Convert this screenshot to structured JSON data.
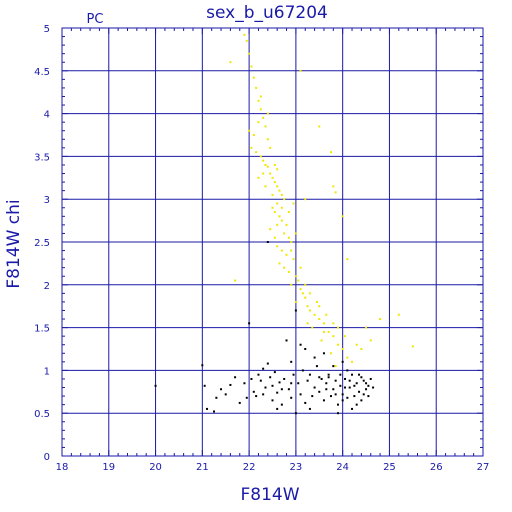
{
  "chart_data": {
    "type": "scatter",
    "title": "sex_b_u67204",
    "corner_label": "PC",
    "xlabel": "F814W",
    "ylabel": "F814W  chi",
    "xlim": [
      18,
      27
    ],
    "ylim": [
      0,
      5
    ],
    "x_ticks": [
      "18",
      "19",
      "20",
      "21",
      "22",
      "23",
      "24",
      "25",
      "26",
      "27"
    ],
    "y_ticks": [
      "0",
      "0.5",
      "1",
      "1.5",
      "2",
      "2.5",
      "3",
      "3.5",
      "4",
      "4.5",
      "5"
    ],
    "grid": true,
    "colors": {
      "axis": "#1a1aa8",
      "grid": "#1a1aa8",
      "text": "#1a1aa8",
      "series_yellow": "#f2e600",
      "series_black": "#000000"
    },
    "series": [
      {
        "color": "#f2e600",
        "points": [
          [
            21.9,
            4.92
          ],
          [
            21.95,
            4.85
          ],
          [
            22.0,
            4.7
          ],
          [
            22.05,
            4.55
          ],
          [
            22.1,
            4.42
          ],
          [
            22.15,
            4.3
          ],
          [
            22.2,
            4.15
          ],
          [
            22.25,
            4.05
          ],
          [
            22.3,
            3.95
          ],
          [
            22.2,
            3.9
          ],
          [
            22.1,
            3.75
          ],
          [
            22.05,
            3.6
          ],
          [
            22.15,
            3.55
          ],
          [
            22.25,
            3.5
          ],
          [
            22.3,
            3.45
          ],
          [
            22.35,
            3.4
          ],
          [
            22.4,
            3.38
          ],
          [
            22.45,
            3.3
          ],
          [
            22.5,
            3.25
          ],
          [
            22.55,
            3.2
          ],
          [
            22.6,
            3.15
          ],
          [
            22.65,
            3.1
          ],
          [
            22.7,
            3.05
          ],
          [
            22.75,
            3.0
          ],
          [
            22.6,
            2.95
          ],
          [
            22.5,
            2.9
          ],
          [
            22.55,
            2.85
          ],
          [
            22.65,
            2.8
          ],
          [
            22.7,
            2.75
          ],
          [
            22.8,
            2.7
          ],
          [
            22.75,
            2.6
          ],
          [
            22.85,
            2.55
          ],
          [
            22.9,
            2.5
          ],
          [
            22.6,
            2.45
          ],
          [
            22.7,
            2.4
          ],
          [
            22.8,
            2.35
          ],
          [
            22.95,
            2.3
          ],
          [
            22.65,
            2.25
          ],
          [
            22.75,
            2.2
          ],
          [
            22.85,
            2.15
          ],
          [
            23.0,
            2.1
          ],
          [
            23.05,
            2.05
          ],
          [
            22.9,
            2.0
          ],
          [
            23.1,
            1.95
          ],
          [
            23.15,
            1.9
          ],
          [
            23.2,
            1.85
          ],
          [
            23.0,
            1.8
          ],
          [
            23.25,
            1.75
          ],
          [
            23.3,
            1.7
          ],
          [
            23.4,
            1.65
          ],
          [
            23.5,
            1.6
          ],
          [
            23.6,
            1.55
          ],
          [
            23.35,
            1.5
          ],
          [
            23.7,
            1.45
          ],
          [
            23.8,
            1.4
          ],
          [
            23.55,
            1.35
          ],
          [
            23.9,
            1.3
          ],
          [
            24.0,
            1.25
          ],
          [
            23.75,
            1.2
          ],
          [
            24.1,
            1.15
          ],
          [
            24.2,
            1.1
          ],
          [
            23.85,
            1.05
          ],
          [
            22.4,
            3.7
          ],
          [
            22.45,
            3.6
          ],
          [
            22.3,
            3.3
          ],
          [
            22.55,
            3.4
          ],
          [
            22.6,
            3.35
          ],
          [
            22.5,
            3.05
          ],
          [
            22.35,
            3.15
          ],
          [
            22.7,
            2.9
          ],
          [
            22.45,
            2.65
          ],
          [
            22.85,
            2.85
          ],
          [
            22.55,
            2.55
          ],
          [
            23.0,
            2.6
          ],
          [
            22.9,
            2.4
          ],
          [
            23.1,
            2.2
          ],
          [
            23.2,
            2.0
          ],
          [
            23.3,
            1.9
          ],
          [
            23.45,
            1.8
          ],
          [
            23.5,
            1.75
          ],
          [
            23.65,
            1.65
          ],
          [
            23.8,
            1.55
          ],
          [
            23.9,
            1.5
          ],
          [
            24.05,
            1.4
          ],
          [
            24.3,
            1.3
          ],
          [
            24.4,
            1.25
          ],
          [
            22.25,
            4.2
          ],
          [
            22.4,
            4.0
          ],
          [
            22.0,
            3.8
          ],
          [
            22.35,
            3.85
          ],
          [
            23.5,
            3.85
          ],
          [
            23.75,
            3.55
          ],
          [
            23.8,
            3.15
          ],
          [
            23.85,
            3.08
          ],
          [
            23.1,
            4.5
          ],
          [
            24.1,
            2.3
          ],
          [
            24.0,
            2.8
          ],
          [
            24.8,
            1.6
          ],
          [
            25.2,
            1.65
          ],
          [
            25.5,
            1.28
          ],
          [
            21.7,
            2.05
          ],
          [
            21.6,
            4.6
          ],
          [
            23.2,
            3.0
          ],
          [
            24.5,
            1.5
          ],
          [
            24.6,
            1.35
          ],
          [
            22.95,
            2.95
          ],
          [
            22.2,
            3.25
          ],
          [
            22.6,
            2.7
          ],
          [
            23.25,
            1.55
          ],
          [
            23.6,
            1.45
          ]
        ]
      },
      {
        "color": "#000000",
        "points": [
          [
            20.0,
            0.82
          ],
          [
            21.0,
            1.06
          ],
          [
            21.05,
            0.82
          ],
          [
            21.1,
            0.55
          ],
          [
            21.25,
            0.52
          ],
          [
            21.4,
            0.78
          ],
          [
            21.5,
            0.72
          ],
          [
            21.6,
            0.83
          ],
          [
            21.8,
            0.62
          ],
          [
            21.9,
            0.85
          ],
          [
            21.95,
            0.68
          ],
          [
            22.0,
            1.55
          ],
          [
            22.05,
            0.9
          ],
          [
            22.1,
            0.75
          ],
          [
            22.15,
            0.7
          ],
          [
            22.2,
            0.95
          ],
          [
            22.25,
            0.88
          ],
          [
            22.3,
            0.72
          ],
          [
            22.35,
            0.8
          ],
          [
            22.4,
            2.5
          ],
          [
            22.4,
            1.08
          ],
          [
            22.45,
            0.92
          ],
          [
            22.5,
            0.65
          ],
          [
            22.55,
            0.98
          ],
          [
            22.6,
            0.74
          ],
          [
            22.65,
            0.86
          ],
          [
            22.7,
            0.6
          ],
          [
            22.75,
            0.9
          ],
          [
            22.8,
            1.35
          ],
          [
            22.85,
            0.78
          ],
          [
            22.9,
            0.68
          ],
          [
            22.95,
            0.95
          ],
          [
            23.0,
            1.7
          ],
          [
            23.0,
            0.5
          ],
          [
            23.05,
            0.85
          ],
          [
            23.1,
            0.72
          ],
          [
            23.15,
            1.0
          ],
          [
            23.2,
            0.62
          ],
          [
            23.25,
            0.88
          ],
          [
            23.3,
            0.95
          ],
          [
            23.35,
            0.7
          ],
          [
            23.4,
            0.8
          ],
          [
            23.45,
            1.05
          ],
          [
            23.5,
            0.75
          ],
          [
            23.55,
            0.9
          ],
          [
            23.6,
            0.65
          ],
          [
            23.65,
            0.85
          ],
          [
            23.7,
            0.95
          ],
          [
            23.75,
            0.7
          ],
          [
            23.8,
            0.78
          ],
          [
            23.85,
            0.88
          ],
          [
            23.9,
            0.6
          ],
          [
            23.95,
            0.82
          ],
          [
            24.0,
            0.72
          ],
          [
            24.05,
            0.9
          ],
          [
            24.1,
            0.68
          ],
          [
            24.15,
            0.8
          ],
          [
            24.2,
            0.95
          ],
          [
            24.25,
            0.7
          ],
          [
            24.3,
            0.85
          ],
          [
            24.35,
            0.75
          ],
          [
            24.4,
            0.65
          ],
          [
            24.45,
            0.88
          ],
          [
            24.5,
            0.78
          ],
          [
            24.55,
            0.7
          ],
          [
            24.6,
            0.9
          ],
          [
            24.65,
            0.8
          ],
          [
            23.2,
            1.25
          ],
          [
            23.4,
            1.15
          ],
          [
            23.6,
            1.2
          ],
          [
            23.8,
            1.05
          ],
          [
            24.0,
            1.1
          ],
          [
            24.2,
            0.55
          ],
          [
            24.3,
            0.6
          ],
          [
            22.6,
            0.55
          ],
          [
            22.9,
            1.1
          ],
          [
            23.1,
            1.3
          ],
          [
            23.3,
            0.55
          ],
          [
            23.9,
            0.5
          ],
          [
            24.1,
            1.0
          ],
          [
            21.3,
            0.68
          ],
          [
            21.7,
            0.92
          ],
          [
            22.3,
            1.02
          ],
          [
            22.5,
            0.82
          ],
          [
            22.7,
            0.78
          ],
          [
            22.9,
            0.85
          ],
          [
            23.7,
            0.92
          ],
          [
            24.4,
            0.92
          ],
          [
            24.5,
            0.85
          ],
          [
            24.0,
            0.65
          ],
          [
            23.5,
            0.92
          ],
          [
            23.85,
            0.72
          ],
          [
            24.25,
            0.82
          ],
          [
            24.45,
            0.72
          ],
          [
            24.55,
            0.82
          ],
          [
            23.95,
            0.95
          ],
          [
            24.15,
            0.88
          ],
          [
            24.35,
            0.95
          ],
          [
            23.65,
            0.78
          ],
          [
            24.05,
            0.8
          ]
        ]
      }
    ]
  }
}
